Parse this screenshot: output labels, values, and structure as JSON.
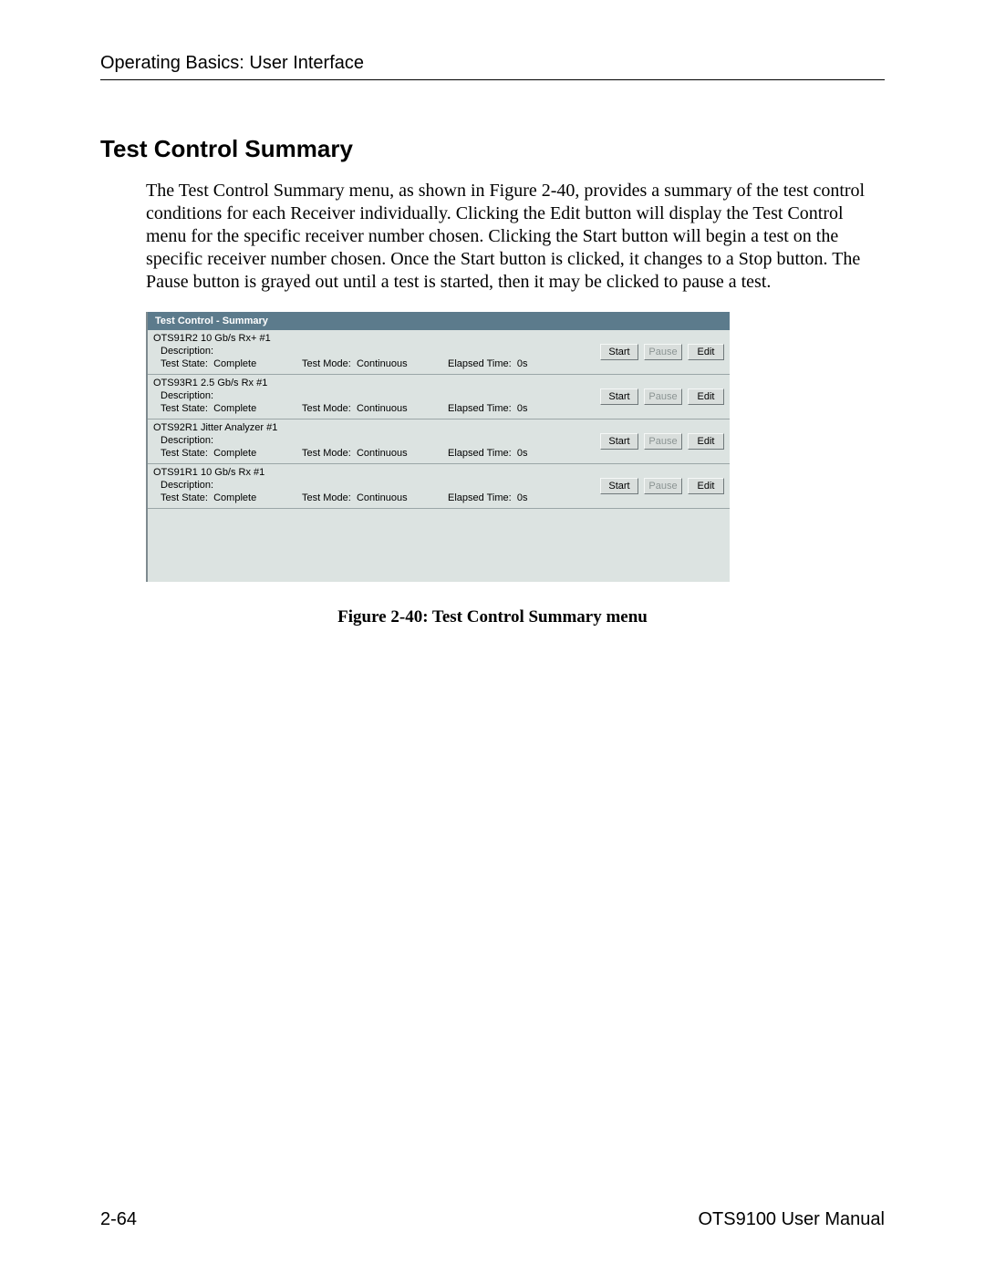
{
  "header": {
    "running": "Operating Basics: User Interface"
  },
  "section": {
    "title": "Test Control Summary",
    "paragraph": "The Test Control Summary menu, as shown in Figure 2-40, provides a summary of the test control conditions for each Receiver individually.  Clicking the Edit button will display the Test Control menu for the specific receiver number chosen.  Clicking the Start button will begin a test on the specific receiver number chosen.  Once the Start button is clicked, it changes to a Stop button.  The Pause button is grayed out until a test is started, then it may be clicked to pause a test."
  },
  "panel": {
    "title": "Test Control - Summary",
    "labels": {
      "description": "Description:",
      "test_state": "Test State:",
      "test_mode": "Test Mode:",
      "elapsed": "Elapsed Time:"
    },
    "buttons": {
      "start": "Start",
      "pause": "Pause",
      "edit": "Edit"
    },
    "rows": [
      {
        "name": "OTS91R2 10 Gb/s Rx+ #1",
        "description": "",
        "state": "Complete",
        "mode": "Continuous",
        "elapsed": "0s",
        "pause_enabled": false
      },
      {
        "name": "OTS93R1 2.5 Gb/s Rx #1",
        "description": "",
        "state": "Complete",
        "mode": "Continuous",
        "elapsed": "0s",
        "pause_enabled": false
      },
      {
        "name": "OTS92R1 Jitter Analyzer #1",
        "description": "",
        "state": "Complete",
        "mode": "Continuous",
        "elapsed": "0s",
        "pause_enabled": false
      },
      {
        "name": "OTS91R1 10 Gb/s Rx #1",
        "description": "",
        "state": "Complete",
        "mode": "Continuous",
        "elapsed": "0s",
        "pause_enabled": false
      }
    ],
    "colors": {
      "title_bg": "#5c7b8c",
      "title_fg": "#ffffff",
      "panel_bg": "#dce3e1",
      "divider": "#9aa6a7",
      "btn_bg": "#d9dedc",
      "btn_border_dark": "#70797b",
      "btn_border_light": "#f5f8f7",
      "btn_disabled_text": "#8b9493"
    }
  },
  "figure": {
    "caption": "Figure 2-40: Test Control Summary menu"
  },
  "footer": {
    "left": "2-64",
    "right": "OTS9100 User Manual"
  }
}
